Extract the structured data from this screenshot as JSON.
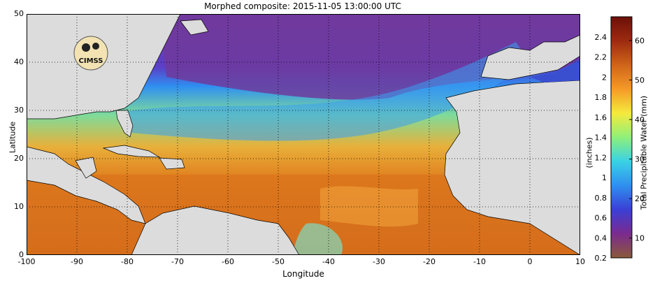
{
  "title": "Morphed composite: 2015-11-05 13:00:00 UTC",
  "xlabel": "Longitude",
  "ylabel": "Latitude",
  "x_ticks": [
    "-100",
    "-90",
    "-80",
    "-70",
    "-60",
    "-50",
    "-40",
    "-30",
    "-20",
    "-10",
    "0",
    "10"
  ],
  "y_ticks": [
    "0",
    "10",
    "20",
    "30",
    "40",
    "50"
  ],
  "colorbar": {
    "label_inches": "(inches)",
    "label_mm": "Total Precipitable Water (mm)",
    "inch_ticks": [
      "0.2",
      "0.4",
      "0.6",
      "0.8",
      "1",
      "1.2",
      "1.4",
      "1.6",
      "1.8",
      "2",
      "2.2",
      "2.4"
    ],
    "mm_ticks": [
      "10",
      "20",
      "30",
      "40",
      "50",
      "60"
    ],
    "colors": [
      "#8a5a3a",
      "#7b2a8e",
      "#3a3fd6",
      "#2f8ff0",
      "#39d2e6",
      "#8ff07a",
      "#f5ea3c",
      "#f59a26",
      "#d0641a",
      "#9e2a10",
      "#6b1008"
    ]
  },
  "logo": {
    "text": "CIMSS"
  },
  "field_colors": {
    "land": "#e0e0e0",
    "dry": "#7a3b9e",
    "moist": "#2f8ff0",
    "wet": "#e0801e",
    "very_wet": "#c9581a"
  }
}
